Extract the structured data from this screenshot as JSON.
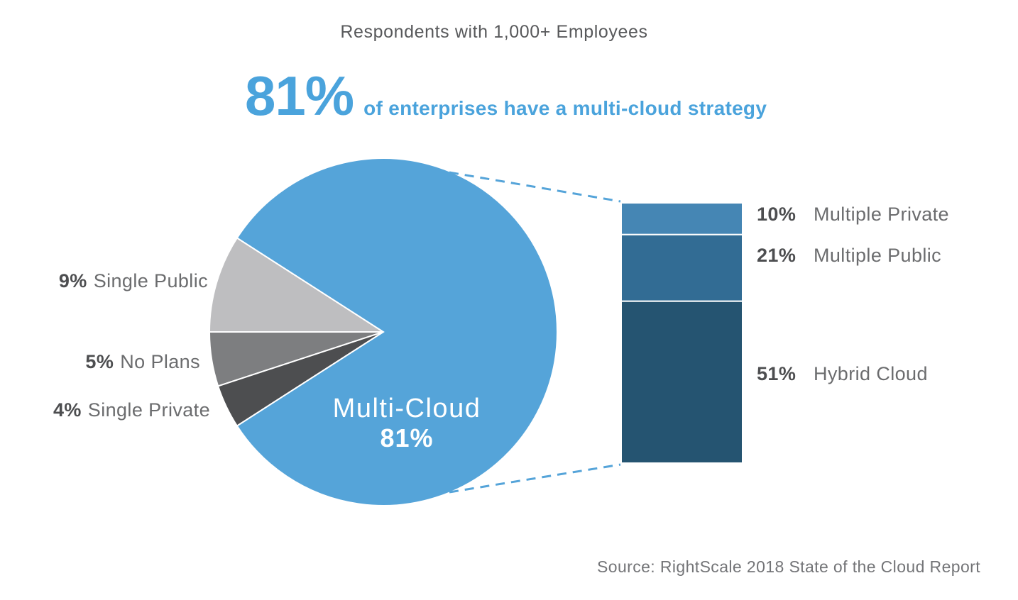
{
  "colors": {
    "headline_blue": "#4AA3DC",
    "dashed_line": "#55A4D9",
    "pct_text": "#4D4E50",
    "label_text": "#6B6C6E",
    "title_text": "#58595B",
    "source_text": "#737477",
    "background": "#FFFFFF"
  },
  "chart_data": {
    "type": "pie",
    "title": "Respondents with 1,000+ Employees",
    "headline": {
      "value": "81%",
      "text": "of enterprises have a multi-cloud strategy"
    },
    "legend_position": "none",
    "pie": {
      "center_label": "Multi-Cloud",
      "center_value": "81%",
      "segments": [
        {
          "label": "Single Public",
          "pct": "9%",
          "value": 9,
          "color": "#BEBEC0"
        },
        {
          "label": "No Plans",
          "pct": "5%",
          "value": 5,
          "color": "#7D7E80"
        },
        {
          "label": "Single Private",
          "pct": "4%",
          "value": 4,
          "color": "#4D4E50"
        },
        {
          "label": "Multi-Cloud",
          "pct": "81%",
          "value": 81,
          "color": "#55A4D9"
        }
      ]
    },
    "bar_breakdown": {
      "description": "Stacked-bar breakdown of the 81% multi-cloud slice",
      "segments": [
        {
          "label": "Multiple Private",
          "pct": "10%",
          "value": 10,
          "color": "#4586B4"
        },
        {
          "label": "Multiple Public",
          "pct": "21%",
          "value": 21,
          "color": "#326C94"
        },
        {
          "label": "Hybrid Cloud",
          "pct": "51%",
          "value": 51,
          "color": "#255471"
        }
      ]
    },
    "source": "Source: RightScale 2018 State of the Cloud Report"
  }
}
